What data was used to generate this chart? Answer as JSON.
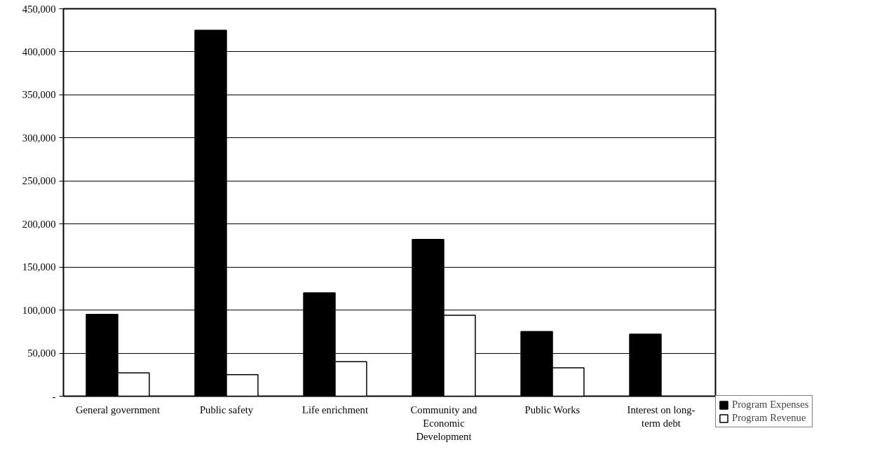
{
  "chart_data": {
    "type": "bar",
    "categories": [
      "General government",
      "Public safety",
      "Life enrichment",
      "Community and Economic Development",
      "Public Works",
      "Interest on long-term debt"
    ],
    "series": [
      {
        "name": "Program Expenses",
        "color": "#000000",
        "values": [
          95000,
          425000,
          120000,
          182000,
          75000,
          72000
        ]
      },
      {
        "name": "Program Revenue",
        "color": "#ffffff",
        "values": [
          27000,
          25000,
          40000,
          94000,
          33000,
          null
        ]
      }
    ],
    "ylim": [
      0,
      450000
    ],
    "yticks": [
      {
        "value": 0,
        "label": "-"
      },
      {
        "value": 50000,
        "label": "50,000"
      },
      {
        "value": 100000,
        "label": "100,000"
      },
      {
        "value": 150000,
        "label": "150,000"
      },
      {
        "value": 200000,
        "label": "200,000"
      },
      {
        "value": 250000,
        "label": "250,000"
      },
      {
        "value": 300000,
        "label": "300,000"
      },
      {
        "value": 350000,
        "label": "350,000"
      },
      {
        "value": 400000,
        "label": "400,000"
      },
      {
        "value": 450000,
        "label": "450,000"
      }
    ],
    "grid": "y",
    "legend": "bottom right"
  }
}
